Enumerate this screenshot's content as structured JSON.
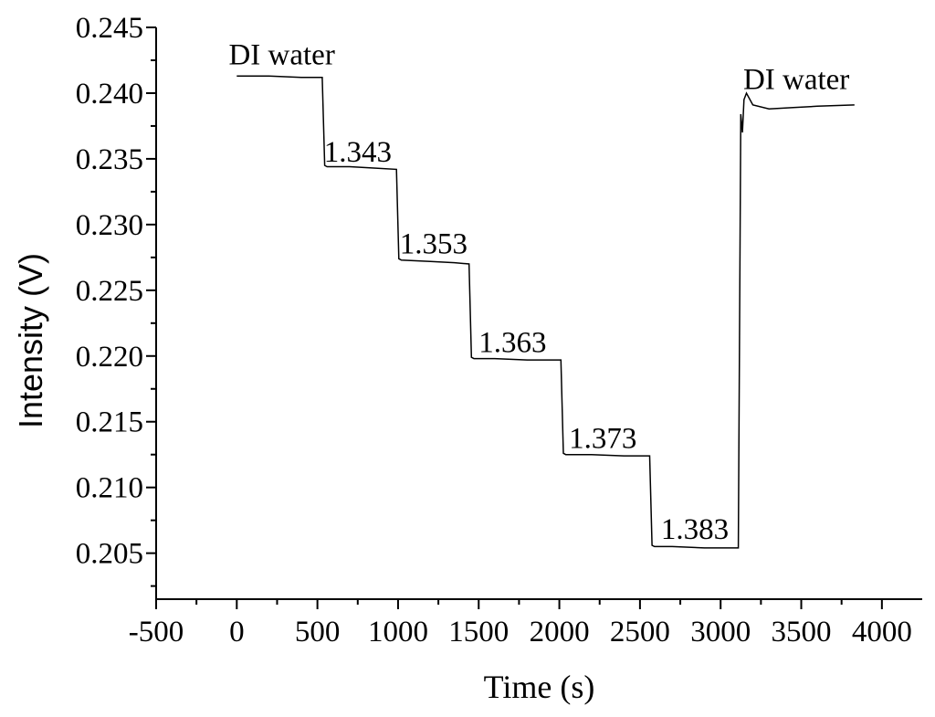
{
  "chart_data": {
    "type": "line",
    "title": "",
    "xlabel": "Time (s)",
    "ylabel": "Intensity (V)",
    "xlim": [
      -500,
      4250
    ],
    "ylim": [
      0.2015,
      0.245
    ],
    "xticks": [
      -500,
      0,
      500,
      1000,
      1500,
      2000,
      2500,
      3000,
      3500,
      4000
    ],
    "xtick_labels": [
      "-500",
      "0",
      "500",
      "1000",
      "1500",
      "2000",
      "2500",
      "3000",
      "3500",
      "4000"
    ],
    "yticks": [
      0.205,
      0.21,
      0.215,
      0.22,
      0.225,
      0.23,
      0.235,
      0.24,
      0.245
    ],
    "ytick_labels": [
      "0.205",
      "0.210",
      "0.215",
      "0.220",
      "0.225",
      "0.230",
      "0.235",
      "0.240",
      "0.245"
    ],
    "grid": false,
    "legend": "none",
    "series": [
      {
        "x": [
          0,
          200,
          400,
          530,
          545,
          560,
          700,
          850,
          990,
          1005,
          1020,
          1200,
          1350,
          1440,
          1455,
          1470,
          1600,
          1800,
          2010,
          2025,
          2040,
          2200,
          2400,
          2560,
          2575,
          2590,
          2700,
          2900,
          3090,
          3110,
          3125,
          3135,
          3145,
          3160,
          3200,
          3300,
          3450,
          3600,
          3830
        ],
        "y": [
          0.2413,
          0.2413,
          0.2412,
          0.2412,
          0.2345,
          0.2344,
          0.2344,
          0.2343,
          0.2342,
          0.2274,
          0.2273,
          0.2272,
          0.2271,
          0.227,
          0.2199,
          0.2198,
          0.2198,
          0.2197,
          0.2197,
          0.2126,
          0.2125,
          0.2125,
          0.2124,
          0.2124,
          0.2056,
          0.2055,
          0.2055,
          0.2054,
          0.2054,
          0.2054,
          0.2384,
          0.237,
          0.2395,
          0.24,
          0.2391,
          0.2388,
          0.2389,
          0.239,
          0.2391
        ]
      }
    ],
    "annotations": [
      {
        "text": "DI water",
        "x": -50,
        "y": 0.2422
      },
      {
        "text": "1.343",
        "x": 540,
        "y": 0.2348
      },
      {
        "text": "1.353",
        "x": 1010,
        "y": 0.2278
      },
      {
        "text": "1.363",
        "x": 1500,
        "y": 0.2203
      },
      {
        "text": "1.373",
        "x": 2060,
        "y": 0.213
      },
      {
        "text": "1.383",
        "x": 2630,
        "y": 0.2061
      },
      {
        "text": "DI water",
        "x": 3140,
        "y": 0.2403
      }
    ]
  }
}
